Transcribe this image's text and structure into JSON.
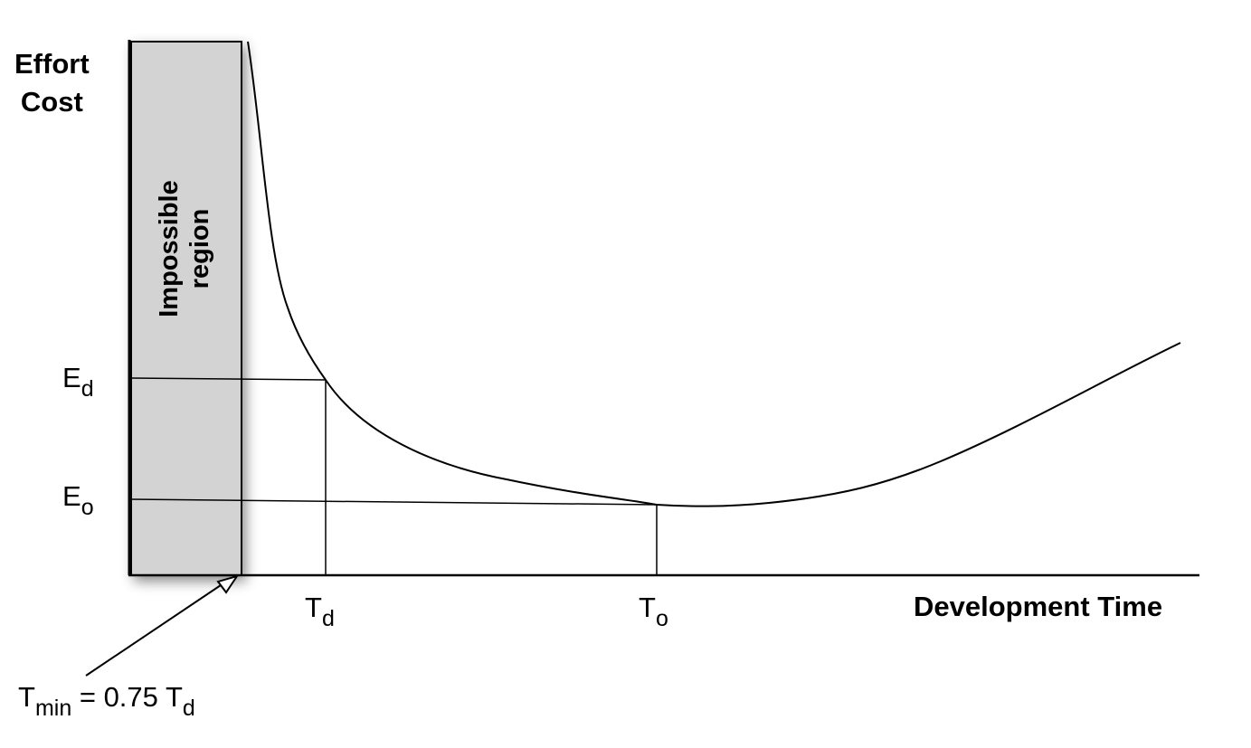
{
  "axes": {
    "y_title_line1": "Effort",
    "y_title_line2": "Cost",
    "x_title": "Development Time"
  },
  "region": {
    "line1": "Impossible",
    "line2": "region",
    "fill": "#d3d3d3"
  },
  "markers": {
    "ed": {
      "main": "E",
      "sub": "d"
    },
    "eo": {
      "main": "E",
      "sub": "o"
    },
    "td": {
      "main": "T",
      "sub": "d"
    },
    "to": {
      "main": "T",
      "sub": "o"
    }
  },
  "annotation": {
    "t": "T",
    "t_sub": "min",
    "middle": " = 0.75 T",
    "end_sub": "d"
  }
}
